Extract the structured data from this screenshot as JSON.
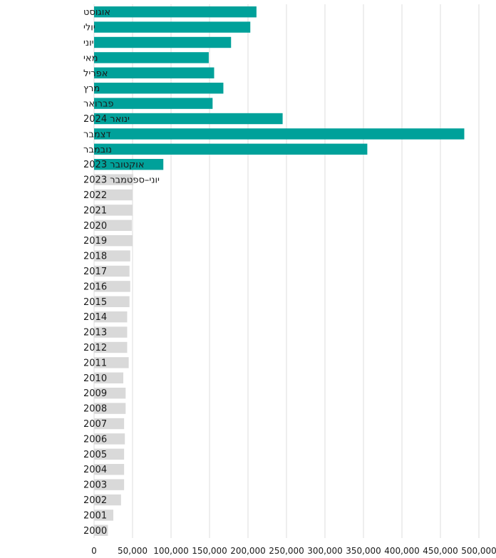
{
  "chart_data": {
    "type": "bar",
    "orientation": "horizontal",
    "title": "",
    "xlabel": "",
    "ylabel": "",
    "xlim": [
      0,
      500000
    ],
    "ticks": [
      0,
      50000,
      100000,
      150000,
      200000,
      250000,
      300000,
      350000,
      400000,
      450000,
      500000
    ],
    "tick_labels": [
      "0",
      "50,000",
      "100,000",
      "150,000",
      "200,000",
      "250,000",
      "300,000",
      "350,000",
      "400,000",
      "450,000",
      "500,000"
    ],
    "grid": "vertical",
    "colors": {
      "highlight": "#00a19a",
      "base": "#d9d9d9"
    },
    "categories": [
      "אוגוסט",
      "יולי",
      "יוני",
      "מאי",
      "אפריל",
      "מרץ",
      "פברואר",
      "ינואר 2024",
      "דצמבר",
      "נובמבר",
      "אוקטובר 2023",
      "יוני–ספטמבר 2023",
      "2022",
      "2021",
      "2020",
      "2019",
      "2018",
      "2017",
      "2016",
      "2015",
      "2014",
      "2013",
      "2012",
      "2011",
      "2010",
      "2009",
      "2008",
      "2007",
      "2006",
      "2005",
      "2004",
      "2003",
      "2002",
      "2001",
      "2000"
    ],
    "values": [
      211000,
      203000,
      178000,
      149000,
      156000,
      168000,
      154000,
      245000,
      481000,
      355000,
      90000,
      51000,
      50000,
      50000,
      49000,
      50000,
      47000,
      46000,
      47000,
      46000,
      43000,
      43000,
      43000,
      45000,
      38000,
      41000,
      41000,
      39000,
      40000,
      39000,
      39000,
      39000,
      35000,
      25000,
      18000
    ],
    "highlight": [
      true,
      true,
      true,
      true,
      true,
      true,
      true,
      true,
      true,
      true,
      true,
      false,
      false,
      false,
      false,
      false,
      false,
      false,
      false,
      false,
      false,
      false,
      false,
      false,
      false,
      false,
      false,
      false,
      false,
      false,
      false,
      false,
      false,
      false,
      false
    ]
  }
}
